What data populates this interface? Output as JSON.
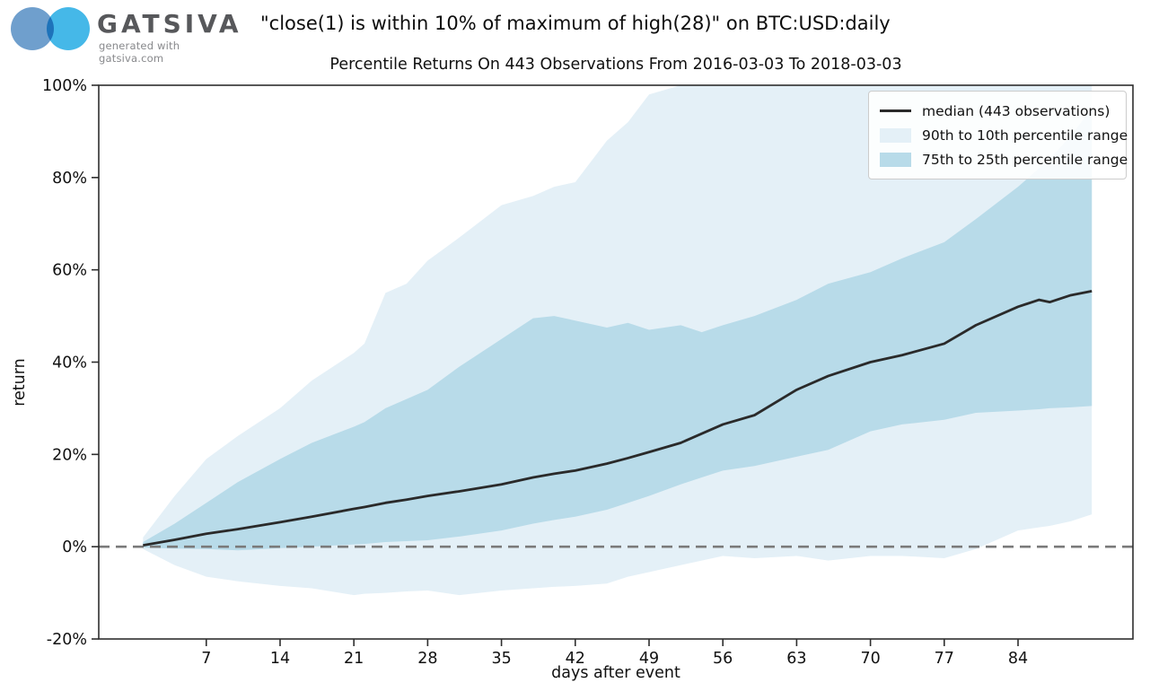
{
  "header": {
    "brand": {
      "name": "GATSIVA",
      "tagline": "generated with gatsiva.com"
    },
    "title": "\"close(1) is within 10% of maximum of high(28)\" on BTC:USD:daily"
  },
  "chart_data": {
    "type": "area",
    "title": "Percentile Returns On 443 Observations From 2016-03-03 To 2018-03-03",
    "xlabel": "days after event",
    "ylabel": "return",
    "x_ticks": [
      7,
      14,
      21,
      28,
      35,
      42,
      49,
      56,
      63,
      70,
      77,
      84
    ],
    "y_ticks": [
      "100%",
      "80%",
      "60%",
      "40%",
      "20%",
      "0%",
      "-20%"
    ],
    "y_tick_values": [
      100,
      80,
      60,
      40,
      20,
      0,
      -20
    ],
    "xlim": [
      -3.2,
      94.9
    ],
    "ylim": [
      -20,
      100
    ],
    "zero_line": true,
    "grid": false,
    "legend_position": "upper right",
    "legend": [
      {
        "label": "median (443 observations)",
        "type": "line"
      },
      {
        "label": "90th to 10th percentile range",
        "type": "patch-outer"
      },
      {
        "label": "75th to 25th percentile range",
        "type": "patch-inner"
      }
    ],
    "days": [
      1,
      4,
      7,
      10,
      14,
      17,
      21,
      22,
      24,
      26,
      28,
      31,
      35,
      38,
      40,
      42,
      45,
      47,
      49,
      52,
      54,
      56,
      59,
      63,
      66,
      70,
      73,
      77,
      80,
      84,
      86,
      87,
      89,
      91
    ],
    "series": [
      {
        "name": "median",
        "values": [
          0.3,
          1.5,
          2.8,
          3.8,
          5.3,
          6.5,
          8.2,
          8.6,
          9.5,
          10.2,
          11.0,
          12.0,
          13.5,
          15.0,
          15.8,
          16.5,
          18.0,
          19.2,
          20.5,
          22.5,
          24.5,
          26.5,
          28.5,
          34.0,
          37.0,
          40.0,
          41.5,
          44.0,
          48.0,
          52.0,
          53.5,
          53.0,
          54.5,
          55.4
        ]
      },
      {
        "name": "p90",
        "values": [
          2,
          11,
          19,
          24,
          30,
          36,
          42,
          44,
          55,
          57,
          62,
          67,
          74,
          76,
          78,
          79,
          88,
          92,
          98,
          100,
          100,
          100,
          100,
          100,
          100,
          100,
          100,
          100,
          100,
          100,
          100,
          100,
          100,
          100
        ]
      },
      {
        "name": "p75",
        "values": [
          1,
          5,
          9.5,
          14,
          19,
          22.5,
          26,
          27,
          30,
          32,
          34,
          39,
          45,
          49.5,
          50,
          49,
          47.5,
          48.5,
          47,
          48,
          46.5,
          48,
          50,
          53.5,
          57,
          59.5,
          62.5,
          66,
          71,
          78,
          82,
          84,
          89,
          95
        ]
      },
      {
        "name": "p25",
        "values": [
          -0.2,
          -0.4,
          -0.5,
          -0.8,
          -0.3,
          0,
          0.5,
          0.6,
          1.0,
          1.2,
          1.4,
          2.2,
          3.5,
          5.0,
          5.8,
          6.5,
          8.0,
          9.5,
          11.0,
          13.5,
          15.0,
          16.5,
          17.5,
          19.5,
          21.0,
          25.0,
          26.5,
          27.5,
          29.0,
          29.5,
          29.8,
          30.0,
          30.2,
          30.5
        ]
      },
      {
        "name": "p10",
        "values": [
          -0.5,
          -4,
          -6.5,
          -7.5,
          -8.5,
          -9,
          -10.5,
          -10.2,
          -10.0,
          -9.7,
          -9.5,
          -10.5,
          -9.5,
          -9,
          -8.7,
          -8.5,
          -8,
          -6.5,
          -5.5,
          -4,
          -3,
          -2,
          -2.5,
          -2,
          -3,
          -2,
          -2,
          -2.5,
          -0.5,
          3.5,
          4.2,
          4.5,
          5.5,
          7
        ]
      }
    ],
    "colors": {
      "median": "#2a2a2a",
      "band_outer": "#e4f0f7",
      "band_inner": "#b8dbe9",
      "zero_line": "#7a7a7a",
      "frame": "#2e2e2e"
    }
  }
}
